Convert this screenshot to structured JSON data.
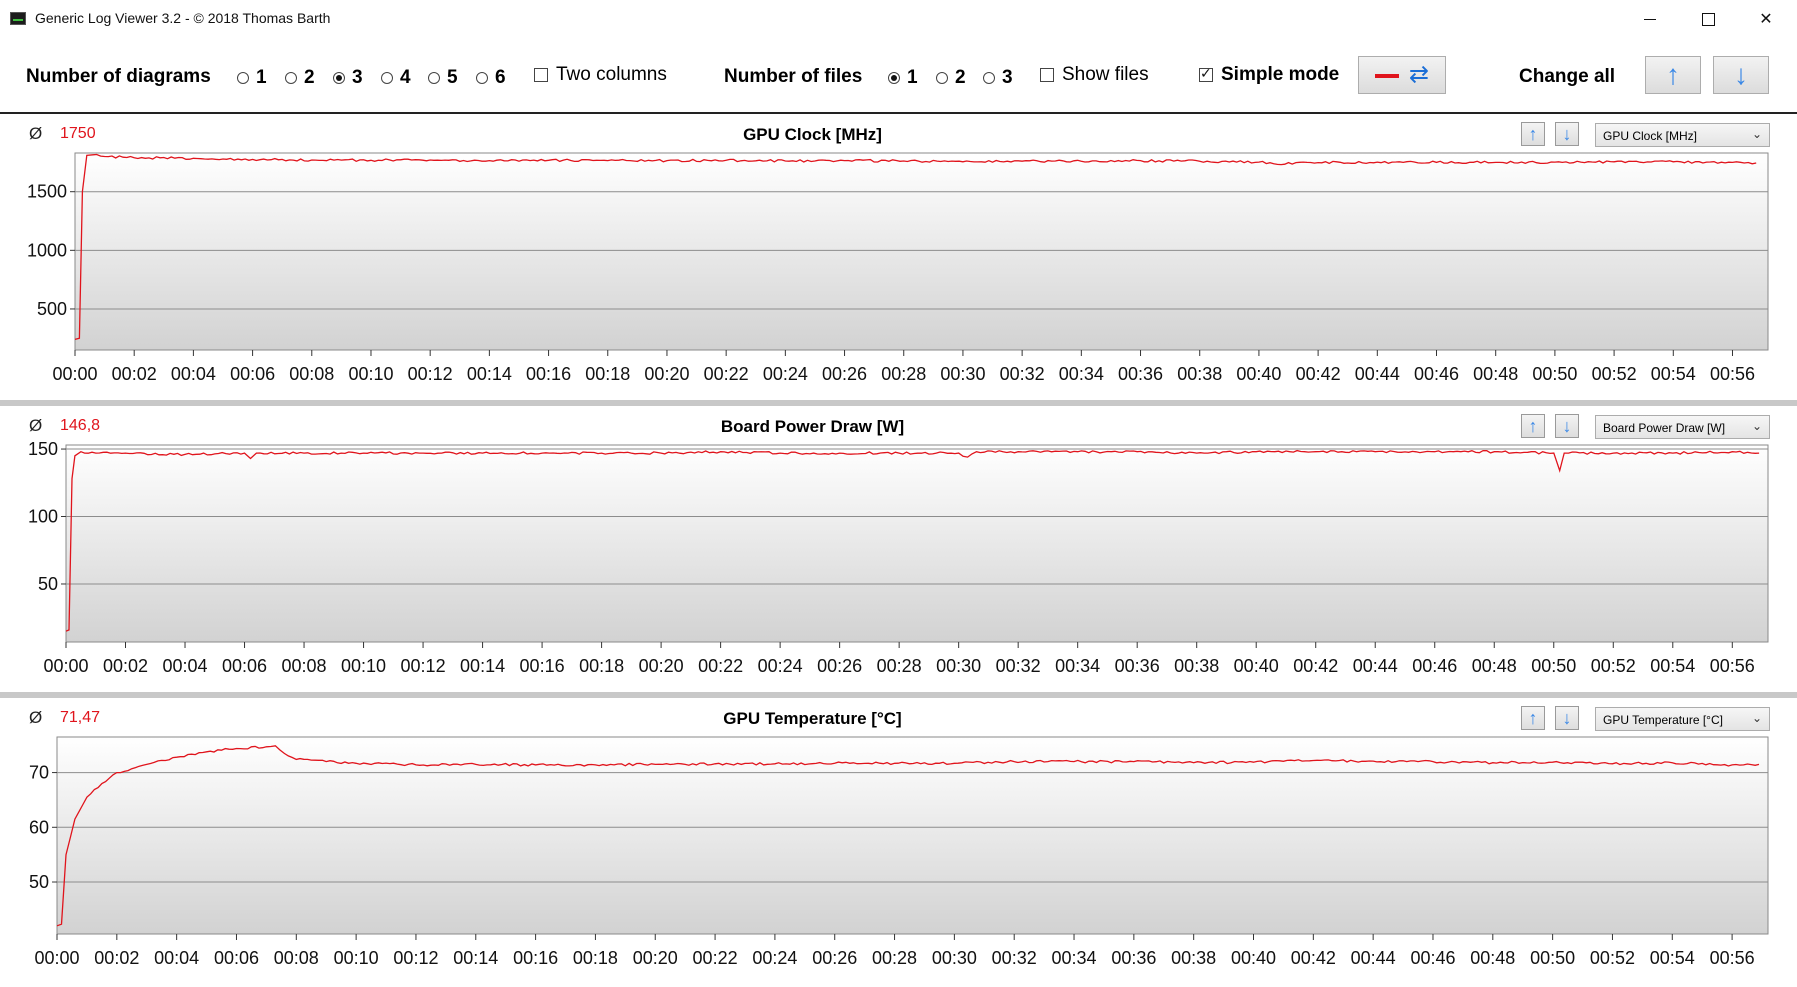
{
  "window": {
    "title": "Generic Log Viewer 3.2 - © 2018 Thomas Barth",
    "minimize": "minimize",
    "maximize": "maximize",
    "close": "close"
  },
  "toolbar": {
    "diagrams_label": "Number of diagrams",
    "diagram_options": [
      "1",
      "2",
      "3",
      "4",
      "5",
      "6"
    ],
    "diagram_selected": "3",
    "two_columns_label": "Two columns",
    "two_columns_checked": false,
    "files_label": "Number of files",
    "file_options": [
      "1",
      "2",
      "3"
    ],
    "file_selected": "1",
    "show_files_label": "Show files",
    "show_files_checked": false,
    "simple_mode_label": "Simple mode",
    "simple_mode_checked": true,
    "change_all_label": "Change all",
    "line_color": "#e0141c"
  },
  "panels": [
    {
      "avg_symbol": "Ø",
      "avg_value": "1750",
      "title": "GPU Clock [MHz]",
      "select_value": "GPU Clock [MHz]"
    },
    {
      "avg_symbol": "Ø",
      "avg_value": "146,8",
      "title": "Board Power Draw [W]",
      "select_value": "Board Power Draw [W]"
    },
    {
      "avg_symbol": "Ø",
      "avg_value": "71,47",
      "title": "GPU Temperature [°C]",
      "select_value": "GPU Temperature [°C]"
    }
  ],
  "chart_data": [
    {
      "type": "line",
      "title": "GPU Clock [MHz]",
      "x_ticks": [
        "00:00",
        "00:02",
        "00:04",
        "00:06",
        "00:08",
        "00:10",
        "00:12",
        "00:14",
        "00:16",
        "00:18",
        "00:20",
        "00:22",
        "00:24",
        "00:26",
        "00:28",
        "00:30",
        "00:32",
        "00:34",
        "00:36",
        "00:38",
        "00:40",
        "00:42",
        "00:44",
        "00:46",
        "00:48",
        "00:50",
        "00:52",
        "00:54",
        "00:56"
      ],
      "y_ticks": [
        500,
        1000,
        1500
      ],
      "ylim": [
        150,
        1830
      ],
      "xlim_minutes": [
        0,
        57.2
      ],
      "series": [
        {
          "color": "#e0141c",
          "x_minutes": [
            0,
            0.15,
            0.25,
            0.4,
            0.6,
            1,
            2,
            4,
            6,
            8,
            10,
            12,
            14,
            16,
            18,
            20,
            22,
            24,
            26,
            28,
            30,
            32,
            34,
            36,
            38,
            40,
            40.5,
            42,
            44,
            46,
            48,
            50,
            52,
            54,
            56,
            56.8
          ],
          "values": [
            240,
            250,
            1500,
            1810,
            1815,
            1800,
            1790,
            1785,
            1775,
            1770,
            1768,
            1770,
            1765,
            1768,
            1765,
            1765,
            1768,
            1762,
            1765,
            1762,
            1755,
            1760,
            1760,
            1765,
            1760,
            1752,
            1738,
            1748,
            1752,
            1750,
            1750,
            1752,
            1755,
            1755,
            1750,
            1745
          ]
        }
      ]
    },
    {
      "type": "line",
      "title": "Board Power Draw [W]",
      "x_ticks": [
        "00:00",
        "00:02",
        "00:04",
        "00:06",
        "00:08",
        "00:10",
        "00:12",
        "00:14",
        "00:16",
        "00:18",
        "00:20",
        "00:22",
        "00:24",
        "00:26",
        "00:28",
        "00:30",
        "00:32",
        "00:34",
        "00:36",
        "00:38",
        "00:40",
        "00:42",
        "00:44",
        "00:46",
        "00:48",
        "00:50",
        "00:52",
        "00:54",
        "00:56"
      ],
      "y_ticks": [
        50,
        100,
        150
      ],
      "ylim": [
        7,
        153
      ],
      "xlim_minutes": [
        0,
        57.2
      ],
      "series": [
        {
          "color": "#e0141c",
          "x_minutes": [
            0,
            0.1,
            0.2,
            0.3,
            0.5,
            1,
            2,
            4,
            6,
            6.2,
            6.4,
            8,
            10,
            12,
            14,
            16,
            18,
            20,
            22,
            24,
            26,
            28,
            30,
            30.3,
            30.6,
            32,
            34,
            36,
            38,
            40,
            42,
            44,
            46,
            48,
            50,
            50.2,
            50.35,
            50.5,
            52,
            54,
            56,
            56.9
          ],
          "values": [
            15,
            16,
            128,
            145,
            148,
            147,
            147,
            146,
            147,
            143,
            147,
            147,
            147,
            147,
            147,
            147,
            147,
            147,
            148,
            147,
            147,
            147,
            147,
            144,
            148,
            148,
            148,
            148,
            147,
            148,
            148,
            148,
            148,
            148,
            147,
            134,
            147,
            147,
            147,
            147,
            148,
            147
          ]
        }
      ]
    },
    {
      "type": "line",
      "title": "GPU Temperature [°C]",
      "x_ticks": [
        "00:00",
        "00:02",
        "00:04",
        "00:06",
        "00:08",
        "00:10",
        "00:12",
        "00:14",
        "00:16",
        "00:18",
        "00:20",
        "00:22",
        "00:24",
        "00:26",
        "00:28",
        "00:30",
        "00:32",
        "00:34",
        "00:36",
        "00:38",
        "00:40",
        "00:42",
        "00:44",
        "00:46",
        "00:48",
        "00:50",
        "00:52",
        "00:54",
        "00:56"
      ],
      "y_ticks": [
        50,
        60,
        70
      ],
      "ylim": [
        40.5,
        76.5
      ],
      "xlim_minutes": [
        0,
        57.2
      ],
      "series": [
        {
          "color": "#e0141c",
          "x_minutes": [
            0,
            0.15,
            0.3,
            0.6,
            1,
            1.5,
            2,
            3,
            4,
            5,
            6,
            7,
            7.3,
            7.6,
            8,
            9,
            10,
            12,
            14,
            16,
            18,
            20,
            22,
            24,
            26,
            28,
            30,
            32,
            34,
            36,
            38,
            40,
            42,
            44,
            46,
            48,
            50,
            52,
            54,
            56,
            56.9
          ],
          "values": [
            42,
            42.3,
            55,
            61.5,
            65.5,
            68,
            70,
            71.5,
            72.8,
            73.8,
            74.4,
            74.7,
            74.9,
            73.5,
            72.4,
            72,
            71.7,
            71.4,
            71.5,
            71.4,
            71.4,
            71.5,
            71.6,
            71.6,
            71.7,
            71.7,
            71.7,
            72,
            72,
            72,
            71.8,
            71.9,
            72.2,
            72.1,
            72,
            71.8,
            71.9,
            71.6,
            71.8,
            71.4,
            71.5
          ]
        }
      ]
    }
  ]
}
